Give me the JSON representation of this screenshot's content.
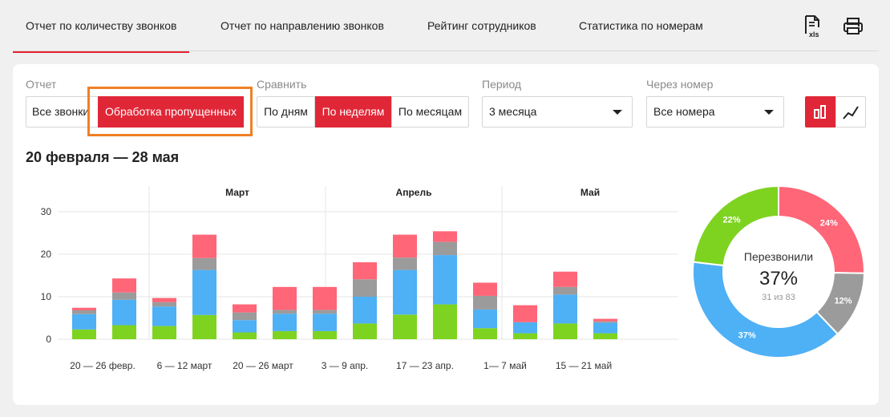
{
  "tabs": [
    {
      "label": "Отчет по количеству звонков",
      "active": true
    },
    {
      "label": "Отчет по направлению звонков",
      "active": false
    },
    {
      "label": "Рейтинг сотрудников",
      "active": false
    },
    {
      "label": "Статистика по номерам",
      "active": false
    }
  ],
  "toolbar": {
    "xls_label": "xls"
  },
  "filters": {
    "report": {
      "label": "Отчет",
      "options": [
        "Все звонки",
        "Обработка пропущенных"
      ],
      "selected": "Обработка пропущенных"
    },
    "compare": {
      "label": "Сравнить",
      "options": [
        "По дням",
        "По неделям",
        "По месяцам"
      ],
      "selected": "По неделям"
    },
    "period": {
      "label": "Период",
      "value": "3 месяца"
    },
    "via_number": {
      "label": "Через номер",
      "value": "Все номера"
    }
  },
  "view_toggle": {
    "selected": "bar",
    "colors": {
      "active": "#e02737"
    }
  },
  "period_title": "20 февраля — 28 мая",
  "chart_data": {
    "type": "bar",
    "stacked": true,
    "ylim": [
      0,
      30
    ],
    "yticks": [
      0,
      10,
      20,
      30
    ],
    "month_labels": [
      "Март",
      "Апрель",
      "Май"
    ],
    "x_tick_labels": [
      "20 — 26 февр.",
      "6 — 12 март",
      "20 — 26 март",
      "3 — 9 апр.",
      "17 — 23 апр.",
      "1— 7 май",
      "15 — 21 май"
    ],
    "series": [
      {
        "color": "#7ed321",
        "values": [
          2.3,
          3.3,
          3.1,
          5.7,
          1.6,
          1.9,
          1.9,
          3.7,
          5.8,
          8.2,
          2.6,
          1.4,
          3.7,
          1.4
        ]
      },
      {
        "color": "#4eb0f5",
        "values": [
          3.6,
          6.0,
          4.6,
          10.6,
          2.9,
          4.1,
          4.1,
          6.3,
          10.5,
          11.6,
          4.4,
          2.6,
          6.8,
          2.5
        ]
      },
      {
        "color": "#9b9b9b",
        "values": [
          0.9,
          1.7,
          1.0,
          2.8,
          1.8,
          0.9,
          0.9,
          4.1,
          2.9,
          3.1,
          3.2,
          0.0,
          1.8,
          0.3
        ]
      },
      {
        "color": "#ff6678",
        "values": [
          0.6,
          3.3,
          1.0,
          5.5,
          1.9,
          5.4,
          5.4,
          4.0,
          5.4,
          2.5,
          3.1,
          4.0,
          3.6,
          0.6
        ]
      }
    ]
  },
  "donut": {
    "center_label": "Перезвонили",
    "center_value": "37%",
    "center_sub": "31 из 83",
    "slices": [
      {
        "value": 24,
        "label": "24%",
        "color": "#ff6678"
      },
      {
        "value": 12,
        "label": "12%",
        "color": "#9b9b9b"
      },
      {
        "value": 37,
        "label": "37%",
        "color": "#4eb0f5"
      },
      {
        "value": 22,
        "label": "22%",
        "color": "#7ed321"
      }
    ]
  }
}
